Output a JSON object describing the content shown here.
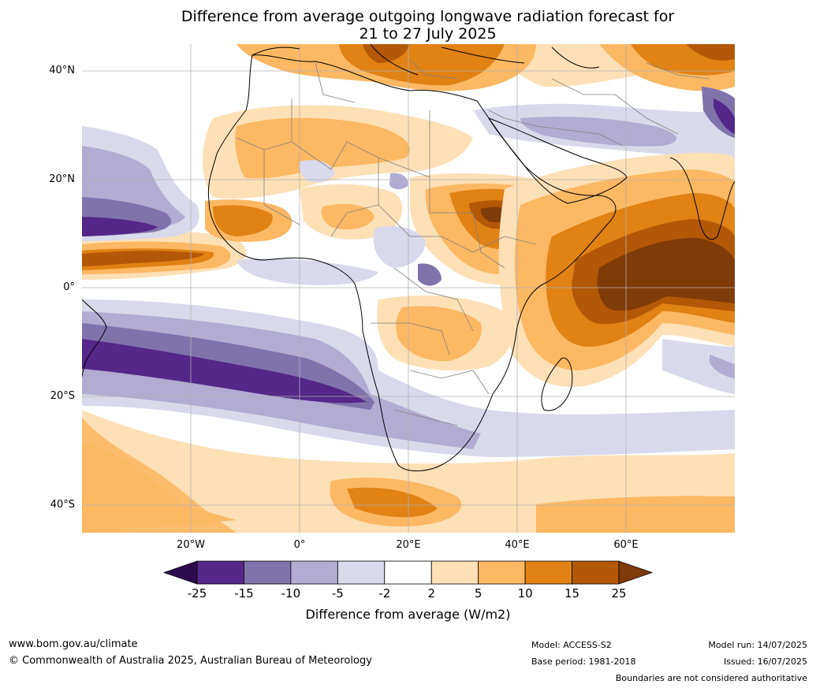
{
  "title_line1": "Difference from average outgoing longwave radiation forecast for",
  "title_line2": "21 to 27 July 2025",
  "lat_labels": [
    "40°N",
    "20°N",
    "0°",
    "20°S",
    "40°S"
  ],
  "lon_labels": [
    "20°W",
    "0°",
    "20°E",
    "40°E",
    "60°E"
  ],
  "colorbar": {
    "ticks": [
      "-25",
      "-15",
      "-10",
      "-5",
      "-2",
      "2",
      "5",
      "10",
      "15",
      "25"
    ],
    "colors": [
      "#2d0a4e",
      "#542788",
      "#8073ac",
      "#b2abd2",
      "#d8daeb",
      "#ffffff",
      "#fee0b6",
      "#fdb863",
      "#e08214",
      "#b35806",
      "#7f3b08"
    ],
    "label": "Difference from average (W/m2)"
  },
  "footer": {
    "url": "www.bom.gov.au/climate",
    "copyright": "© Commonwealth of Australia 2025, Australian Bureau of Meteorology",
    "model": "Model: ACCESS-S2",
    "base_period": "Base period: 1981-2018",
    "model_run": "Model run: 14/07/2025",
    "issued": "Issued: 16/07/2025",
    "boundaries": "Boundaries are not considered authoritative"
  }
}
